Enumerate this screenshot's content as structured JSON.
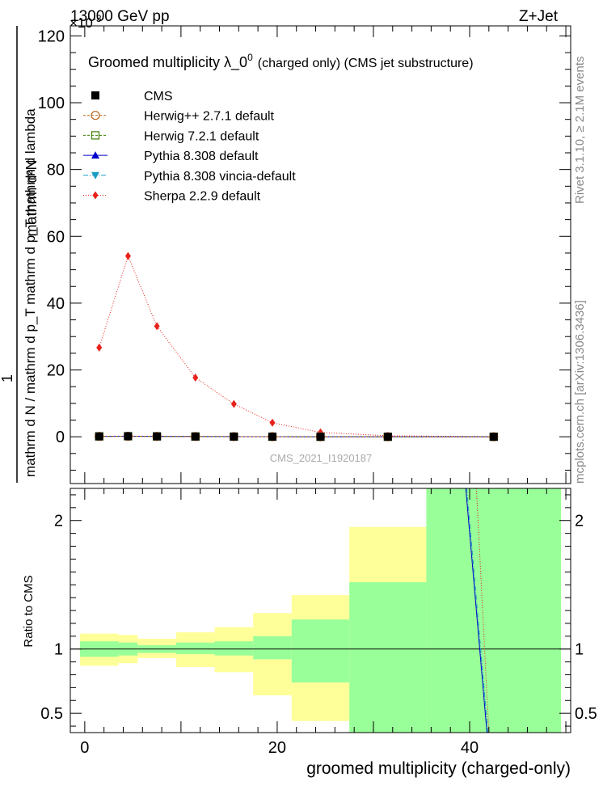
{
  "header": {
    "left": "13000 GeV pp",
    "right": "Z+Jet",
    "exponent_label": "×10",
    "exponent_power": "-3"
  },
  "plot_title": {
    "main": "Groomed multiplicity  λ_0",
    "sup": "0",
    "suffix": "(charged only) (CMS jet substructure)"
  },
  "side_labels": {
    "rivet": "Rivet 3.1.10, ≥ 2.1M events",
    "mcplots": "mcplots.cern.ch [arXiv:1306.3436]"
  },
  "watermark": "CMS_2021_I1920187",
  "chart_data": [
    {
      "type": "line",
      "panel": "main",
      "ylabel_numerator": "mathrm d²N",
      "ylabel_denominator": "mathrm d N / mathrm d p_T mathrm d p_T mathrm d lambda",
      "ylabel_one": "1",
      "y_scale": "×10^-3",
      "xlim": [
        -1.5,
        50.5
      ],
      "ylim": [
        -14,
        123
      ],
      "y_ticks": [
        0,
        20,
        40,
        60,
        80,
        100,
        120
      ],
      "legend_position": "top-left",
      "series": [
        {
          "name": "CMS",
          "color": "#000000",
          "marker": "square-filled",
          "line": "none",
          "x": [
            1.5,
            4.5,
            7.5,
            11.5,
            15.5,
            19.5,
            24.5,
            31.5,
            42.5
          ],
          "y": [
            0.12,
            0.16,
            0.12,
            0.08,
            0.05,
            0.03,
            0.01,
            0.005,
            0.002
          ]
        },
        {
          "name": "Herwig++ 2.7.1 default",
          "color": "#b8651b",
          "marker": "circle-open",
          "line": "dashed",
          "x": [
            1.5,
            4.5,
            7.5,
            11.5,
            15.5,
            19.5,
            24.5,
            31.5,
            42.5
          ],
          "y": [
            0.12,
            0.16,
            0.12,
            0.08,
            0.05,
            0.03,
            0.01,
            0.005,
            0.002
          ]
        },
        {
          "name": "Herwig 7.2.1 default",
          "color": "#3f7f00",
          "marker": "square-open",
          "line": "dashed",
          "x": [
            1.5,
            4.5,
            7.5,
            11.5,
            15.5,
            19.5,
            24.5,
            31.5,
            42.5
          ],
          "y": [
            0.12,
            0.16,
            0.12,
            0.08,
            0.05,
            0.03,
            0.01,
            0.005,
            0.002
          ]
        },
        {
          "name": "Pythia 8.308 default",
          "color": "#0000cc",
          "marker": "triangle-up",
          "line": "solid",
          "x": [
            1.5,
            4.5,
            7.5,
            11.5,
            15.5,
            19.5,
            24.5,
            31.5,
            42.5
          ],
          "y": [
            0.12,
            0.16,
            0.12,
            0.08,
            0.05,
            0.03,
            0.01,
            0.005,
            0.002
          ]
        },
        {
          "name": "Pythia 8.308 vincia-default",
          "color": "#1a9cc4",
          "marker": "triangle-down",
          "line": "dashdot",
          "x": [
            1.5,
            4.5,
            7.5,
            11.5,
            15.5,
            19.5,
            24.5,
            31.5,
            42.5
          ],
          "y": [
            0.12,
            0.16,
            0.12,
            0.08,
            0.05,
            0.03,
            0.01,
            0.005,
            0.002
          ]
        },
        {
          "name": "Sherpa 2.2.9 default",
          "color": "#e8221b",
          "marker": "diamond",
          "line": "dotted",
          "x": [
            1.5,
            4.5,
            7.5,
            11.5,
            15.5,
            19.5,
            24.5,
            31.5,
            42.5
          ],
          "y": [
            26.7,
            54.1,
            33.1,
            17.7,
            9.8,
            4.2,
            1.3,
            0.3,
            0.05
          ]
        }
      ]
    },
    {
      "type": "area",
      "panel": "ratio",
      "ylabel": "Ratio to CMS",
      "xlabel": "groomed multiplicity (charged-only)",
      "xlim": [
        -1.5,
        50.5
      ],
      "ylim": [
        0.35,
        2.25
      ],
      "x_ticks": [
        0,
        20,
        40
      ],
      "y_ticks": [
        0.5,
        1,
        2
      ],
      "bins": [
        {
          "lo": -0.5,
          "hi": 3.5,
          "stat": [
            0.94,
            1.06
          ],
          "total": [
            0.87,
            1.12
          ]
        },
        {
          "lo": 3.5,
          "hi": 5.5,
          "stat": [
            0.95,
            1.05
          ],
          "total": [
            0.89,
            1.11
          ]
        },
        {
          "lo": 5.5,
          "hi": 9.5,
          "stat": [
            0.97,
            1.03
          ],
          "total": [
            0.93,
            1.08
          ]
        },
        {
          "lo": 9.5,
          "hi": 13.5,
          "stat": [
            0.96,
            1.05
          ],
          "total": [
            0.86,
            1.13
          ]
        },
        {
          "lo": 13.5,
          "hi": 17.5,
          "stat": [
            0.95,
            1.06
          ],
          "total": [
            0.82,
            1.17
          ]
        },
        {
          "lo": 17.5,
          "hi": 21.5,
          "stat": [
            0.92,
            1.1
          ],
          "total": [
            0.64,
            1.28
          ]
        },
        {
          "lo": 21.5,
          "hi": 27.5,
          "stat": [
            0.74,
            1.23
          ],
          "total": [
            0.44,
            1.42
          ]
        },
        {
          "lo": 27.5,
          "hi": 35.5,
          "stat": [
            0.3,
            1.52
          ],
          "total": [
            0.3,
            1.95
          ]
        },
        {
          "lo": 35.5,
          "hi": 49.5,
          "stat": [
            0.3,
            2.3
          ],
          "total": [
            0.3,
            2.3
          ]
        }
      ],
      "lines": [
        {
          "name": "Pythia 8.308 default",
          "color": "#0000cc",
          "x": [
            39.6,
            41.8
          ],
          "y": [
            2.3,
            0.3
          ]
        },
        {
          "name": "Pythia 8.308 vincia-default",
          "color": "#1a9cc4",
          "x": [
            39.7,
            41.9
          ],
          "y": [
            2.3,
            0.3
          ]
        },
        {
          "name": "Sherpa 2.2.9 default",
          "color": "#e8221b",
          "x": [
            40.7,
            42.0
          ],
          "y": [
            2.3,
            0.3
          ]
        }
      ]
    }
  ],
  "colors": {
    "band_stat": "#99ff99",
    "band_total": "#ffff99"
  }
}
